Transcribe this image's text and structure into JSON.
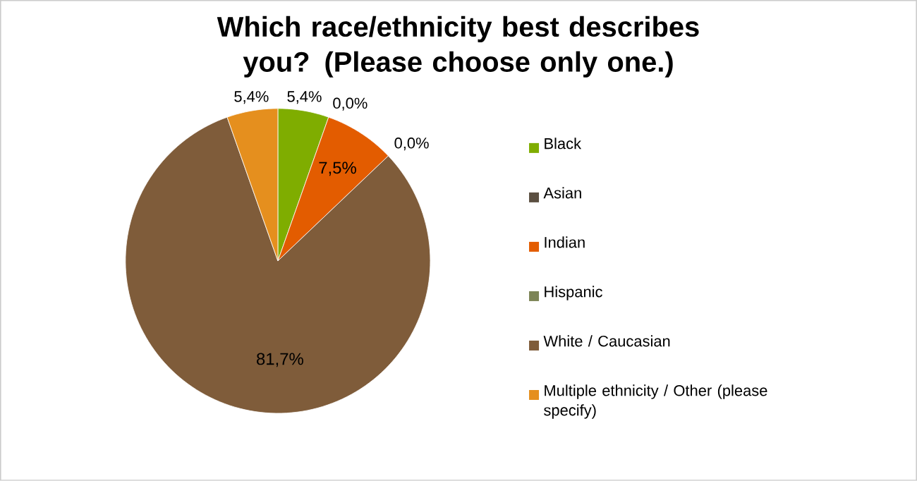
{
  "chart_data": {
    "type": "pie",
    "title": "Which race/ethnicity best describes you? (Please choose only one.)",
    "categories": [
      "Black",
      "Asian",
      "Indian",
      "Hispanic",
      "White / Caucasian",
      "Multiple ethnicity / Other (please specify)"
    ],
    "values": [
      5.4,
      0.0,
      7.5,
      0.0,
      81.7,
      5.4
    ],
    "value_labels": [
      "5,4%",
      "0,0%",
      "7,5%",
      "0,0%",
      "81,7%",
      "5,4%"
    ],
    "colors": [
      "#7fad00",
      "#5b4f41",
      "#e35c00",
      "#7c8456",
      "#7f5c3a",
      "#e58f1e"
    ],
    "legend": "right"
  }
}
